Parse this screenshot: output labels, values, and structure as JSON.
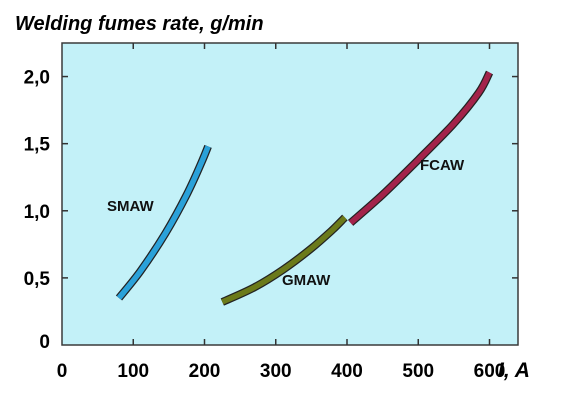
{
  "chart_data": {
    "type": "line",
    "title": "Welding fumes rate, g/min",
    "xlabel": "I, A",
    "ylabel": "",
    "xlim": [
      0,
      640
    ],
    "ylim": [
      0,
      2.25
    ],
    "x_ticks": [
      "0",
      "100",
      "200",
      "300",
      "400",
      "500",
      "600"
    ],
    "x_tick_values": [
      0,
      100,
      200,
      300,
      400,
      500,
      600
    ],
    "y_ticks": [
      "0",
      "0,5",
      "1,0",
      "1,5",
      "2,0"
    ],
    "y_tick_values": [
      0,
      0.5,
      1.0,
      1.5,
      2.0
    ],
    "grid": false,
    "background_color": "#c3f1f8",
    "series": [
      {
        "name": "SMAW",
        "color": "#2aa1d9",
        "points": [
          [
            80,
            0.35
          ],
          [
            110,
            0.55
          ],
          [
            145,
            0.83
          ],
          [
            175,
            1.12
          ],
          [
            195,
            1.35
          ],
          [
            205,
            1.48
          ]
        ]
      },
      {
        "name": "GMAW",
        "color": "#6b7a1a",
        "points": [
          [
            225,
            0.32
          ],
          [
            270,
            0.43
          ],
          [
            310,
            0.56
          ],
          [
            350,
            0.72
          ],
          [
            380,
            0.86
          ],
          [
            397,
            0.95
          ]
        ]
      },
      {
        "name": "FCAW",
        "color": "#a3234a",
        "points": [
          [
            405,
            0.91
          ],
          [
            450,
            1.12
          ],
          [
            500,
            1.38
          ],
          [
            550,
            1.65
          ],
          [
            585,
            1.88
          ],
          [
            600,
            2.03
          ]
        ]
      }
    ]
  }
}
